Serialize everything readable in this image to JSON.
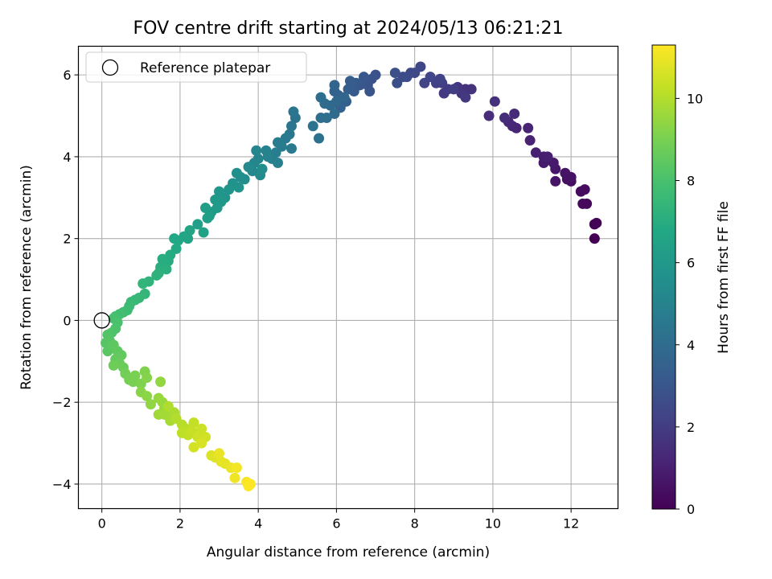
{
  "chart_data": {
    "type": "scatter",
    "title": "FOV centre drift starting at 2024/05/13 06:21:21",
    "xlabel": "Angular distance from reference (arcmin)",
    "ylabel": "Rotation from reference (arcmin)",
    "xlim": [
      -0.6,
      13.2
    ],
    "ylim": [
      -4.6,
      6.7
    ],
    "xticks": [
      0,
      2,
      4,
      6,
      8,
      10,
      12
    ],
    "yticks": [
      -4,
      -2,
      0,
      2,
      4,
      6
    ],
    "grid": true,
    "legend": {
      "placement": "top-left",
      "entries": [
        "Reference platepar"
      ]
    },
    "reference_point": {
      "x": 0,
      "y": 0,
      "label": "Reference platepar"
    },
    "colorbar": {
      "label": "Hours from first FF file",
      "colormap": "viridis",
      "range": [
        0,
        11.3
      ],
      "ticks": [
        0,
        2,
        4,
        6,
        8,
        10
      ]
    },
    "series": [
      {
        "points": [
          [
            12.6,
            2.0
          ],
          [
            12.6,
            2.35
          ],
          [
            12.65,
            2.38
          ],
          [
            12.4,
            2.85
          ],
          [
            12.3,
            2.85
          ],
          [
            12.25,
            3.15
          ],
          [
            12.35,
            3.2
          ],
          [
            12.0,
            3.4
          ],
          [
            11.9,
            3.45
          ],
          [
            12.0,
            3.5
          ],
          [
            11.85,
            3.6
          ],
          [
            11.6,
            3.4
          ],
          [
            11.6,
            3.7
          ],
          [
            11.55,
            3.85
          ],
          [
            11.3,
            3.85
          ],
          [
            11.3,
            4.0
          ],
          [
            11.1,
            4.1
          ],
          [
            11.4,
            4.0
          ],
          [
            10.95,
            4.4
          ],
          [
            10.9,
            4.7
          ],
          [
            10.6,
            4.7
          ],
          [
            10.5,
            4.75
          ],
          [
            10.4,
            4.85
          ],
          [
            10.55,
            5.05
          ],
          [
            10.3,
            4.95
          ],
          [
            9.9,
            5.0
          ],
          [
            10.05,
            5.35
          ],
          [
            9.3,
            5.65
          ],
          [
            9.45,
            5.65
          ],
          [
            9.1,
            5.7
          ],
          [
            9.2,
            5.55
          ],
          [
            9.3,
            5.45
          ],
          [
            8.75,
            5.55
          ],
          [
            8.85,
            5.65
          ],
          [
            9.0,
            5.65
          ],
          [
            8.7,
            5.8
          ],
          [
            8.55,
            5.8
          ],
          [
            8.65,
            5.9
          ],
          [
            8.25,
            5.8
          ],
          [
            8.4,
            5.95
          ],
          [
            8.15,
            6.2
          ],
          [
            8.0,
            6.05
          ],
          [
            7.9,
            6.05
          ],
          [
            7.8,
            5.95
          ],
          [
            7.7,
            5.95
          ],
          [
            7.55,
            5.8
          ],
          [
            7.5,
            6.05
          ],
          [
            7.0,
            6.0
          ],
          [
            6.9,
            5.9
          ],
          [
            6.8,
            5.75
          ],
          [
            6.85,
            5.6
          ],
          [
            6.6,
            5.75
          ],
          [
            6.7,
            5.95
          ],
          [
            6.5,
            5.8
          ],
          [
            6.45,
            5.6
          ],
          [
            6.35,
            5.85
          ],
          [
            6.3,
            5.65
          ],
          [
            6.25,
            5.35
          ],
          [
            6.1,
            5.2
          ],
          [
            6.05,
            5.5
          ],
          [
            5.95,
            5.6
          ],
          [
            5.95,
            5.75
          ],
          [
            6.2,
            5.45
          ],
          [
            6.0,
            5.35
          ],
          [
            5.85,
            5.25
          ],
          [
            5.95,
            5.05
          ],
          [
            5.7,
            5.3
          ],
          [
            5.6,
            5.45
          ],
          [
            5.75,
            4.95
          ],
          [
            5.6,
            4.95
          ],
          [
            5.55,
            4.45
          ],
          [
            5.4,
            4.75
          ],
          [
            4.95,
            4.95
          ],
          [
            4.85,
            4.75
          ],
          [
            4.9,
            5.1
          ],
          [
            4.8,
            4.55
          ],
          [
            4.85,
            4.2
          ],
          [
            4.7,
            4.45
          ],
          [
            4.5,
            4.35
          ],
          [
            4.6,
            4.25
          ],
          [
            4.45,
            4.1
          ],
          [
            4.35,
            3.95
          ],
          [
            4.5,
            3.85
          ],
          [
            4.25,
            4.0
          ],
          [
            4.2,
            4.15
          ],
          [
            4.0,
            3.95
          ],
          [
            3.95,
            4.15
          ],
          [
            3.9,
            3.85
          ],
          [
            3.85,
            3.65
          ],
          [
            3.75,
            3.75
          ],
          [
            4.05,
            3.55
          ],
          [
            4.1,
            3.7
          ],
          [
            3.65,
            3.45
          ],
          [
            3.55,
            3.5
          ],
          [
            3.45,
            3.6
          ],
          [
            3.35,
            3.35
          ],
          [
            3.5,
            3.25
          ],
          [
            3.25,
            3.2
          ],
          [
            3.15,
            3.0
          ],
          [
            3.0,
            3.15
          ],
          [
            3.05,
            2.9
          ],
          [
            2.9,
            2.95
          ],
          [
            2.95,
            2.75
          ],
          [
            2.8,
            2.65
          ],
          [
            2.75,
            2.55
          ],
          [
            2.65,
            2.75
          ],
          [
            2.7,
            2.5
          ],
          [
            2.45,
            2.35
          ],
          [
            2.6,
            2.15
          ],
          [
            2.2,
            2.0
          ],
          [
            2.25,
            2.2
          ],
          [
            2.1,
            2.05
          ],
          [
            1.95,
            1.95
          ],
          [
            1.85,
            2.0
          ],
          [
            1.9,
            1.75
          ],
          [
            1.75,
            1.6
          ],
          [
            1.7,
            1.45
          ],
          [
            1.55,
            1.5
          ],
          [
            1.5,
            1.3
          ],
          [
            1.65,
            1.25
          ],
          [
            1.45,
            1.15
          ],
          [
            1.4,
            1.1
          ],
          [
            1.2,
            0.95
          ],
          [
            1.05,
            0.9
          ],
          [
            1.1,
            0.65
          ],
          [
            0.95,
            0.55
          ],
          [
            0.85,
            0.5
          ],
          [
            0.75,
            0.45
          ],
          [
            0.7,
            0.35
          ],
          [
            0.65,
            0.25
          ],
          [
            0.55,
            0.2
          ],
          [
            0.45,
            0.15
          ],
          [
            0.35,
            0.1
          ],
          [
            0.3,
            0.05
          ],
          [
            0.4,
            -0.05
          ],
          [
            0.35,
            -0.2
          ],
          [
            0.25,
            -0.3
          ],
          [
            0.15,
            -0.35
          ],
          [
            0.2,
            -0.5
          ],
          [
            0.1,
            -0.55
          ],
          [
            0.15,
            -0.75
          ],
          [
            0.3,
            -0.6
          ],
          [
            0.4,
            -0.75
          ],
          [
            0.5,
            -0.85
          ],
          [
            0.35,
            -0.95
          ],
          [
            0.45,
            -1.05
          ],
          [
            0.55,
            -1.15
          ],
          [
            0.3,
            -1.1
          ],
          [
            0.6,
            -1.3
          ],
          [
            0.7,
            -1.45
          ],
          [
            0.8,
            -1.5
          ],
          [
            0.85,
            -1.35
          ],
          [
            1.0,
            -1.55
          ],
          [
            1.1,
            -1.25
          ],
          [
            1.15,
            -1.4
          ],
          [
            1.0,
            -1.75
          ],
          [
            1.15,
            -1.85
          ],
          [
            1.25,
            -2.05
          ],
          [
            1.5,
            -1.5
          ],
          [
            1.45,
            -1.9
          ],
          [
            1.55,
            -2.0
          ],
          [
            1.6,
            -2.15
          ],
          [
            1.45,
            -2.3
          ],
          [
            1.6,
            -2.3
          ],
          [
            1.75,
            -2.45
          ],
          [
            1.85,
            -2.25
          ],
          [
            1.7,
            -2.1
          ],
          [
            1.9,
            -2.4
          ],
          [
            2.05,
            -2.55
          ],
          [
            2.15,
            -2.65
          ],
          [
            2.05,
            -2.75
          ],
          [
            2.2,
            -2.8
          ],
          [
            2.35,
            -2.5
          ],
          [
            2.3,
            -2.7
          ],
          [
            2.55,
            -2.65
          ],
          [
            2.45,
            -2.85
          ],
          [
            2.65,
            -2.85
          ],
          [
            2.35,
            -3.1
          ],
          [
            2.55,
            -3.0
          ],
          [
            2.8,
            -3.3
          ],
          [
            2.9,
            -3.35
          ],
          [
            3.05,
            -3.45
          ],
          [
            3.15,
            -3.5
          ],
          [
            3.0,
            -3.25
          ],
          [
            3.3,
            -3.6
          ],
          [
            3.4,
            -3.85
          ],
          [
            3.45,
            -3.6
          ],
          [
            3.7,
            -3.95
          ],
          [
            3.75,
            -4.05
          ],
          [
            3.8,
            -4.0
          ]
        ]
      }
    ]
  }
}
